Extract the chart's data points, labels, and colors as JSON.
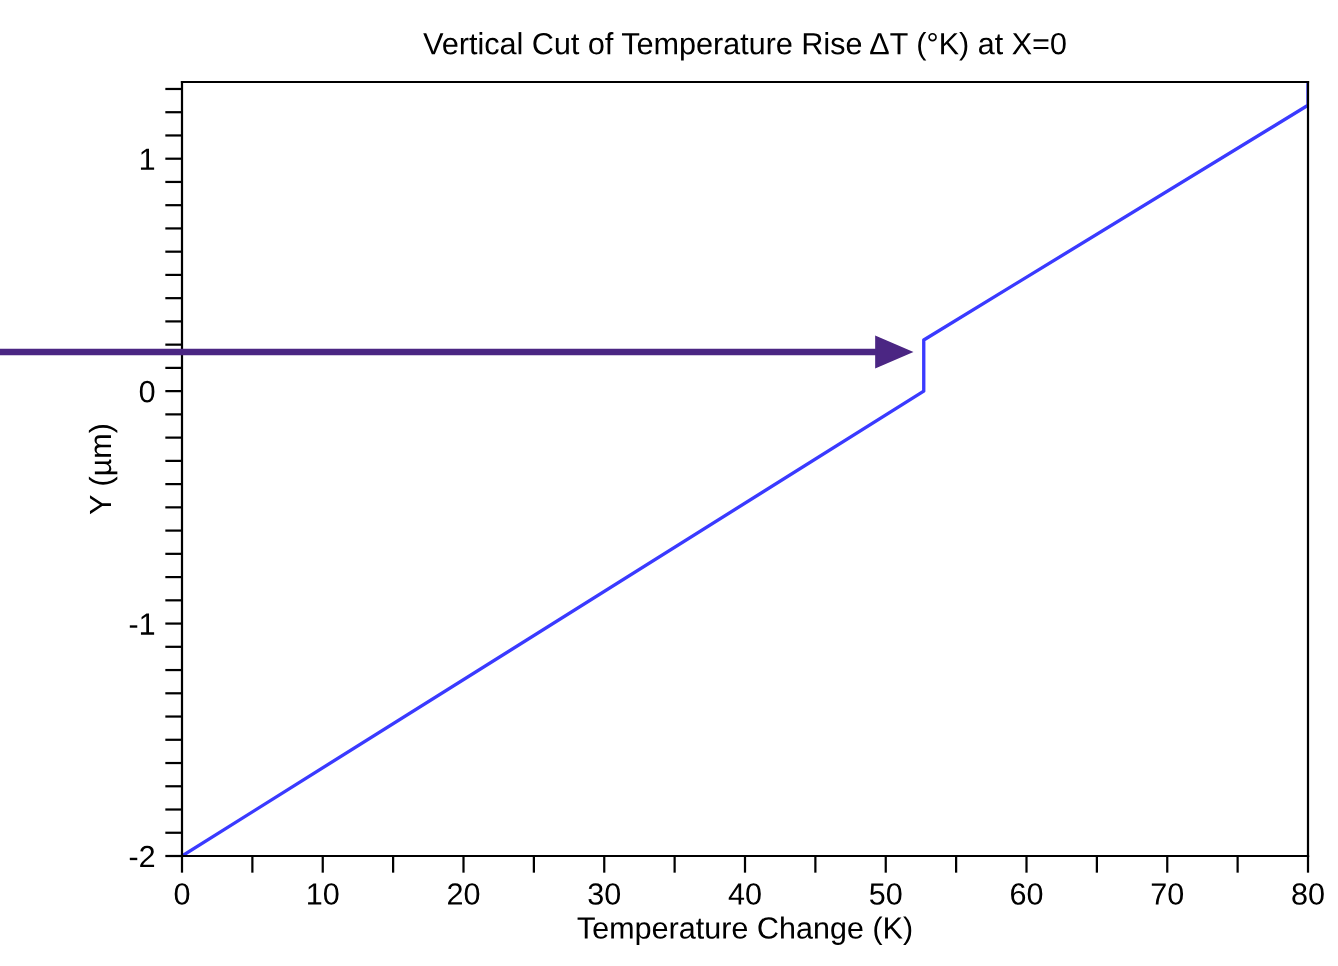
{
  "chart_data": {
    "type": "line",
    "title": "Vertical Cut of Temperature Rise ΔT (°K) at X=0",
    "xlabel": "Temperature Change (K)",
    "ylabel": "Y (µm)",
    "series": [
      {
        "color": "#3a3aff",
        "x": [
          0,
          52.7,
          52.7,
          80,
          80
        ],
        "values": [
          -2,
          0,
          0.22,
          1.23,
          1.33
        ]
      }
    ],
    "xlim": [
      0,
      80
    ],
    "ylim": [
      -2,
      1.33
    ],
    "xticks": [
      0,
      {
        "value": 5,
        "label": null
      },
      10,
      {
        "value": 15,
        "label": null
      },
      20,
      {
        "value": 25,
        "label": null
      },
      30,
      {
        "value": 35,
        "label": null
      },
      40,
      {
        "value": 45,
        "label": null
      },
      50,
      {
        "value": 55,
        "label": null
      },
      60,
      {
        "value": 65,
        "label": null
      },
      70,
      {
        "value": 75,
        "label": null
      },
      80
    ],
    "yticks": [
      -2,
      {
        "value": -1.9,
        "label": null
      },
      {
        "value": -1.8,
        "label": null
      },
      {
        "value": -1.7,
        "label": null
      },
      {
        "value": -1.6,
        "label": null
      },
      {
        "value": -1.5,
        "label": null
      },
      {
        "value": -1.4,
        "label": null
      },
      {
        "value": -1.3,
        "label": null
      },
      {
        "value": -1.2,
        "label": null
      },
      {
        "value": -1.1,
        "label": null
      },
      -1,
      {
        "value": -0.9,
        "label": null
      },
      {
        "value": -0.8,
        "label": null
      },
      {
        "value": -0.7,
        "label": null
      },
      {
        "value": -0.6,
        "label": null
      },
      {
        "value": -0.5,
        "label": null
      },
      {
        "value": -0.4,
        "label": null
      },
      {
        "value": -0.3,
        "label": null
      },
      {
        "value": -0.2,
        "label": null
      },
      {
        "value": -0.1,
        "label": null
      },
      0,
      {
        "value": 0.1,
        "label": null
      },
      {
        "value": 0.2,
        "label": null
      },
      {
        "value": 0.3,
        "label": null
      },
      {
        "value": 0.4,
        "label": null
      },
      {
        "value": 0.5,
        "label": null
      },
      {
        "value": 0.6,
        "label": null
      },
      {
        "value": 0.7,
        "label": null
      },
      {
        "value": 0.8,
        "label": null
      },
      {
        "value": 0.9,
        "label": null
      },
      1,
      {
        "value": 1.1,
        "label": null
      },
      {
        "value": 1.2,
        "label": null
      },
      {
        "value": 1.3,
        "label": null
      }
    ],
    "grid": false,
    "legend": false,
    "marker": "none",
    "line_style": "solid"
  }
}
